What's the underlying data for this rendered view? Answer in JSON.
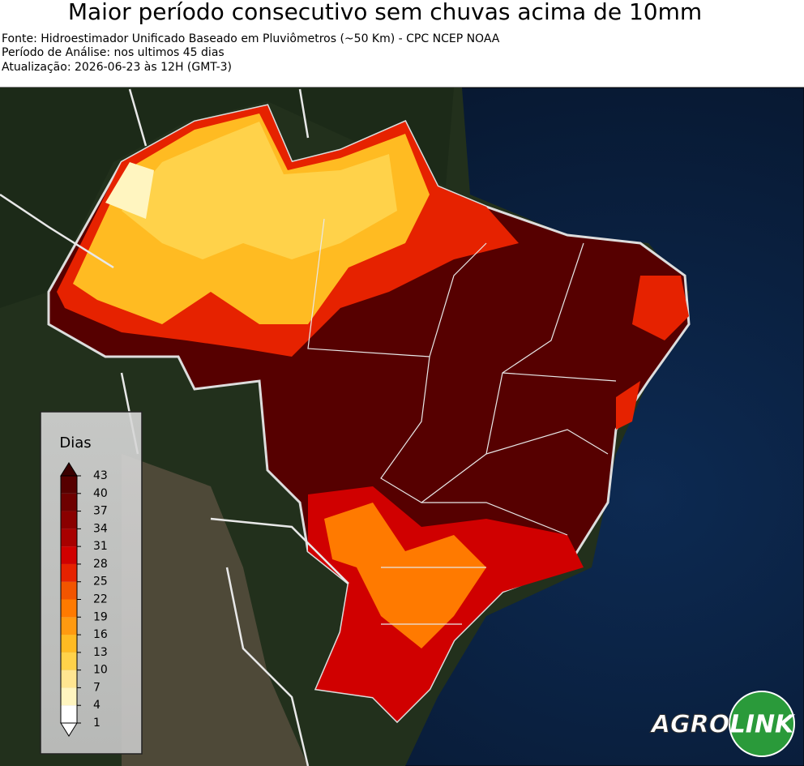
{
  "header": {
    "title": "Maior período consecutivo sem chuvas acima de 10mm",
    "lines": [
      "Fonte: Hidroestimador Unificado Baseado em Pluviômetros (~50 Km) - CPC NCEP NOAA",
      "Período de Análise: nos ultimos 45 dias",
      "Atualização: 2026-06-23 às 12H (GMT-3)"
    ]
  },
  "legend": {
    "title": "Dias",
    "ticks": [
      1,
      4,
      7,
      10,
      13,
      16,
      19,
      22,
      25,
      28,
      31,
      34,
      37,
      40,
      43
    ],
    "colors": [
      "#ffffff",
      "#fff5c0",
      "#ffe591",
      "#ffd24a",
      "#ffbb22",
      "#ff9a10",
      "#ff7a00",
      "#f25500",
      "#e62200",
      "#d00000",
      "#a80000",
      "#8a0000",
      "#6e0000",
      "#560000"
    ],
    "extend_high_color": "#3a0000",
    "extend_low_color": "#ffffff"
  },
  "logo": {
    "left": "AGRO",
    "right": "LINK"
  }
}
